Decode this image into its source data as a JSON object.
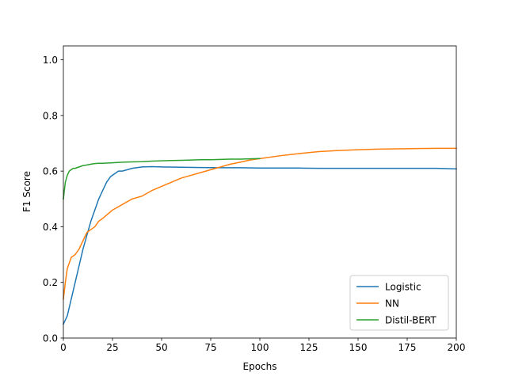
{
  "chart_data": {
    "type": "line",
    "title": "",
    "xlabel": "Epochs",
    "ylabel": "F1 Score",
    "xlim": [
      0,
      200
    ],
    "ylim": [
      0,
      1.05
    ],
    "xticks": [
      0,
      25,
      50,
      75,
      100,
      125,
      150,
      175,
      200
    ],
    "yticks": [
      0.0,
      0.2,
      0.4,
      0.6,
      0.8,
      1.0
    ],
    "grid": false,
    "legend_position": "lower-right",
    "series": [
      {
        "name": "Logistic",
        "color": "#1f77b4",
        "x": [
          0,
          2,
          4,
          6,
          8,
          10,
          12,
          14,
          16,
          18,
          20,
          22,
          24,
          26,
          28,
          30,
          35,
          40,
          45,
          50,
          60,
          70,
          80,
          90,
          100,
          110,
          120,
          130,
          140,
          150,
          160,
          170,
          180,
          190,
          200
        ],
        "y": [
          0.05,
          0.08,
          0.14,
          0.2,
          0.26,
          0.32,
          0.37,
          0.42,
          0.46,
          0.5,
          0.53,
          0.56,
          0.58,
          0.59,
          0.6,
          0.6,
          0.61,
          0.615,
          0.616,
          0.615,
          0.614,
          0.613,
          0.612,
          0.612,
          0.611,
          0.611,
          0.611,
          0.61,
          0.61,
          0.61,
          0.61,
          0.61,
          0.61,
          0.61,
          0.608
        ]
      },
      {
        "name": "NN",
        "color": "#ff7f0e",
        "x": [
          0,
          1,
          2,
          3,
          4,
          6,
          8,
          10,
          12,
          14,
          16,
          18,
          20,
          25,
          30,
          35,
          40,
          45,
          50,
          55,
          60,
          65,
          70,
          75,
          80,
          85,
          90,
          95,
          100,
          110,
          120,
          130,
          140,
          150,
          160,
          170,
          180,
          190,
          200
        ],
        "y": [
          0.14,
          0.2,
          0.25,
          0.27,
          0.29,
          0.3,
          0.32,
          0.35,
          0.38,
          0.39,
          0.4,
          0.42,
          0.43,
          0.46,
          0.48,
          0.5,
          0.51,
          0.53,
          0.545,
          0.56,
          0.575,
          0.585,
          0.595,
          0.605,
          0.615,
          0.625,
          0.632,
          0.64,
          0.645,
          0.655,
          0.663,
          0.67,
          0.674,
          0.677,
          0.679,
          0.68,
          0.681,
          0.682,
          0.682
        ]
      },
      {
        "name": "Distil-BERT",
        "color": "#2ca02c",
        "x": [
          0,
          1,
          2,
          3,
          4,
          5,
          6,
          8,
          10,
          12,
          14,
          16,
          18,
          20,
          25,
          30,
          35,
          40,
          45,
          50,
          55,
          60,
          65,
          70,
          75,
          80,
          85,
          90,
          95,
          100
        ],
        "y": [
          0.5,
          0.56,
          0.585,
          0.6,
          0.605,
          0.61,
          0.61,
          0.615,
          0.62,
          0.622,
          0.625,
          0.627,
          0.628,
          0.628,
          0.63,
          0.632,
          0.633,
          0.634,
          0.636,
          0.637,
          0.638,
          0.639,
          0.64,
          0.641,
          0.641,
          0.642,
          0.643,
          0.643,
          0.644,
          0.645
        ]
      }
    ]
  }
}
